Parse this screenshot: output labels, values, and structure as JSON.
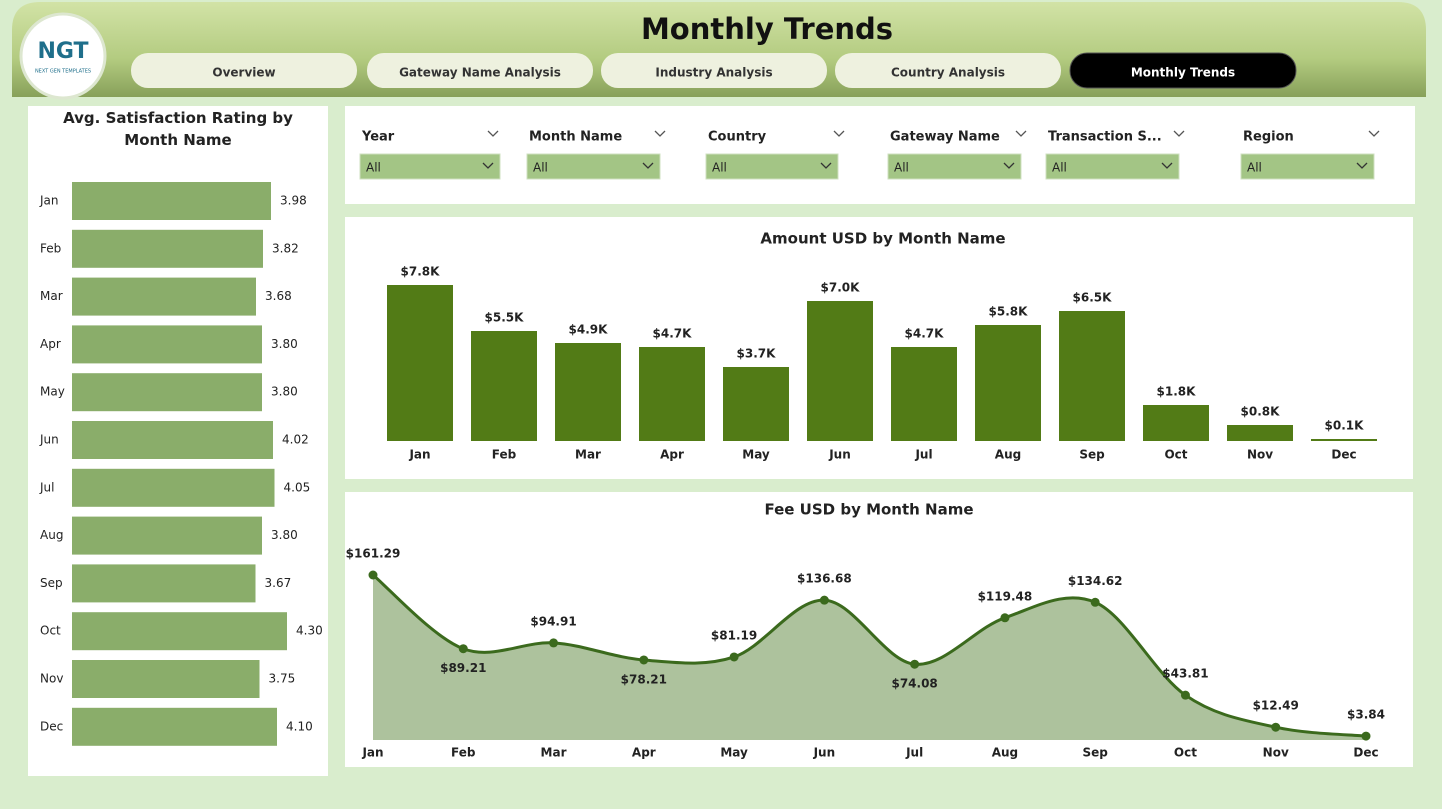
{
  "header": {
    "logo": "NGT",
    "logo_subtitle": "NEXT GEN TEMPLATES",
    "title": "Monthly Trends"
  },
  "nav": {
    "tabs": [
      "Overview",
      "Gateway Name Analysis",
      "Industry Analysis",
      "Country Analysis",
      "Monthly Trends"
    ],
    "active": 4
  },
  "filters": [
    {
      "label": "Year",
      "value": "All"
    },
    {
      "label": "Month Name",
      "value": "All"
    },
    {
      "label": "Country",
      "value": "All"
    },
    {
      "label": "Gateway Name",
      "value": "All"
    },
    {
      "label": "Transaction S...",
      "value": "All"
    },
    {
      "label": "Region",
      "value": "All"
    }
  ],
  "chart_data": [
    {
      "type": "hbar",
      "title": "Avg. Satisfaction Rating by Month Name",
      "color": "#8aad6a",
      "categories": [
        "Jan",
        "Feb",
        "Mar",
        "Apr",
        "May",
        "Jun",
        "Jul",
        "Aug",
        "Sep",
        "Oct",
        "Nov",
        "Dec"
      ],
      "values": [
        3.98,
        3.82,
        3.68,
        3.8,
        3.8,
        4.02,
        4.05,
        3.8,
        3.67,
        4.3,
        3.75,
        4.1
      ],
      "value_labels": [
        "3.98",
        "3.82",
        "3.68",
        "3.80",
        "3.80",
        "4.02",
        "4.05",
        "3.80",
        "3.67",
        "4.30",
        "3.75",
        "4.10"
      ]
    },
    {
      "type": "bar",
      "title": "Amount USD by Month Name",
      "color": "#527b16",
      "categories": [
        "Jan",
        "Feb",
        "Mar",
        "Apr",
        "May",
        "Jun",
        "Jul",
        "Aug",
        "Sep",
        "Oct",
        "Nov",
        "Dec"
      ],
      "values": [
        7800,
        5500,
        4900,
        4700,
        3700,
        7000,
        4700,
        5800,
        6500,
        1800,
        800,
        100
      ],
      "value_labels": [
        "$7.8K",
        "$5.5K",
        "$4.9K",
        "$4.7K",
        "$3.7K",
        "$7.0K",
        "$4.7K",
        "$5.8K",
        "$6.5K",
        "$1.8K",
        "$0.8K",
        "$0.1K"
      ]
    },
    {
      "type": "area",
      "title": "Fee USD by Month Name",
      "color": "#3b6a1d",
      "fill": "#a9bf98",
      "categories": [
        "Jan",
        "Feb",
        "Mar",
        "Apr",
        "May",
        "Jun",
        "Jul",
        "Aug",
        "Sep",
        "Oct",
        "Nov",
        "Dec"
      ],
      "values": [
        161.29,
        89.21,
        94.91,
        78.21,
        81.19,
        136.68,
        74.08,
        119.48,
        134.62,
        43.81,
        12.49,
        3.84
      ],
      "value_labels": [
        "$161.29",
        "$89.21",
        "$94.91",
        "$78.21",
        "$81.19",
        "$136.68",
        "$74.08",
        "$119.48",
        "$134.62",
        "$43.81",
        "$12.49",
        "$3.84"
      ]
    }
  ]
}
